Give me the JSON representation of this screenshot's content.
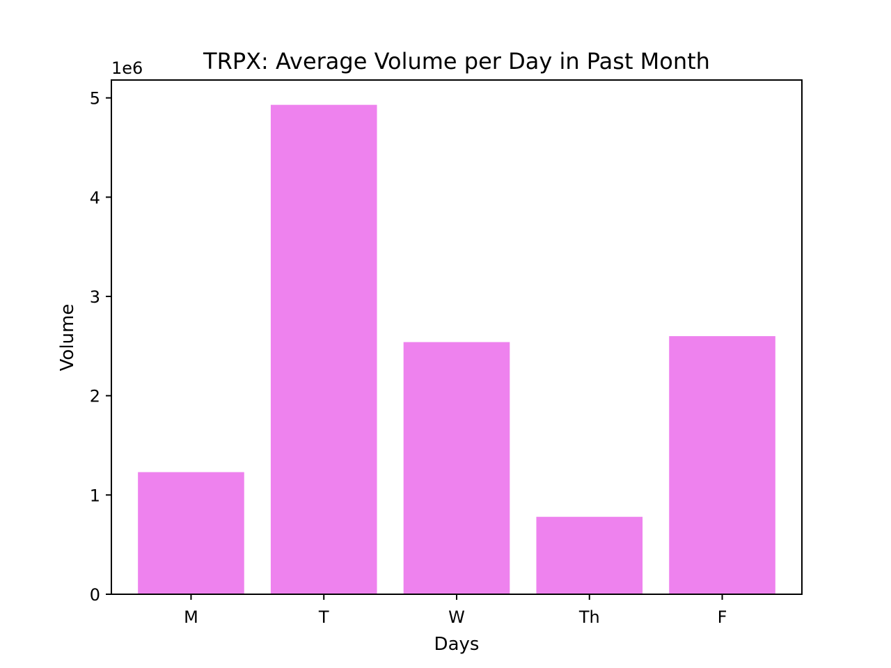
{
  "chart_data": {
    "type": "bar",
    "title": "TRPX: Average Volume per Day in Past Month",
    "xlabel": "Days",
    "ylabel": "Volume",
    "y_offset_label": "1e6",
    "categories": [
      "M",
      "T",
      "W",
      "Th",
      "F"
    ],
    "values": [
      1230000,
      4930000,
      2540000,
      780000,
      2600000
    ],
    "ylim": [
      0,
      5180000
    ],
    "yticks": [
      0,
      1000000,
      2000000,
      3000000,
      4000000,
      5000000
    ],
    "ytick_labels": [
      "0",
      "1",
      "2",
      "3",
      "4",
      "5"
    ],
    "bar_color": "#EE82EE",
    "grid": false,
    "legend": "none"
  }
}
